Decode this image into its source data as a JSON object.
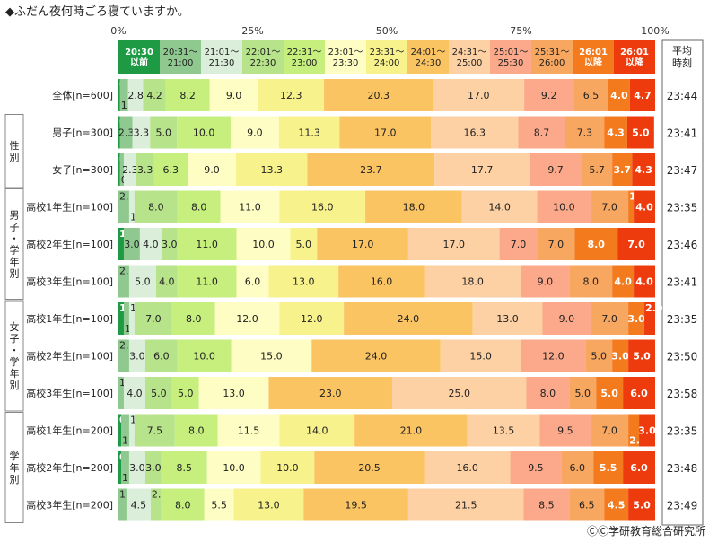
{
  "chart_data": {
    "type": "bar",
    "orientation": "horizontal",
    "stacked": true,
    "title": "◆ふだん夜何時ごろ寝ていますか。",
    "xlim": [
      0,
      100
    ],
    "x_ticks": [
      "0%",
      "25%",
      "50%",
      "75%",
      "100%"
    ],
    "legend": [
      {
        "label": "20:30\n以前",
        "color": "#1e9a45",
        "text_color": "#ffffff"
      },
      {
        "label": "20:31～\n21:00",
        "color": "#8fc98f",
        "text_color": "#222222"
      },
      {
        "label": "21:01～\n21:30",
        "color": "#dbeeda",
        "text_color": "#222222"
      },
      {
        "label": "22:01～\n22:30",
        "color": "#b7e38a",
        "text_color": "#222222"
      },
      {
        "label": "22:31～\n23:00",
        "color": "#c6ef7e",
        "text_color": "#222222"
      },
      {
        "label": "23:01～\n23:30",
        "color": "#fdfdc4",
        "text_color": "#222222"
      },
      {
        "label": "23:31～\n24:00",
        "color": "#f7f28c",
        "text_color": "#222222"
      },
      {
        "label": "24:01～\n24:30",
        "color": "#fbc462",
        "text_color": "#222222"
      },
      {
        "label": "24:31～\n25:00",
        "color": "#fdd1a4",
        "text_color": "#222222"
      },
      {
        "label": "25:01～\n25:30",
        "color": "#fba98a",
        "text_color": "#222222"
      },
      {
        "label": "25:31～\n26:00",
        "color": "#f7a760",
        "text_color": "#222222"
      },
      {
        "label": "26:01\n以降",
        "color": "#f47a1e",
        "text_color": "#ffffff"
      },
      {
        "label": "26:01\n以降",
        "color": "#ee3b0e",
        "text_color": "#ffffff"
      }
    ],
    "avg_header": "平均\n時刻",
    "groups": [
      {
        "label": "",
        "rows": [
          0
        ]
      },
      {
        "label": "性別",
        "rows": [
          1,
          2
        ]
      },
      {
        "label": "男子・学年別",
        "rows": [
          3,
          4,
          5
        ]
      },
      {
        "label": "女子・学年別",
        "rows": [
          6,
          7,
          8
        ]
      },
      {
        "label": "学年別",
        "rows": [
          9,
          10,
          11
        ]
      }
    ],
    "rows": [
      {
        "label": "全体[n=600]",
        "avg": "23:44",
        "values": [
          0.3,
          1.5,
          2.8,
          4.2,
          8.2,
          9.0,
          12.3,
          20.3,
          17.0,
          9.2,
          6.5,
          4.0,
          4.7
        ]
      },
      {
        "label": "男子[n=300]",
        "avg": "23:41",
        "values": [
          0.3,
          2.3,
          3.3,
          5.0,
          10.0,
          9.0,
          11.3,
          17.0,
          16.3,
          8.7,
          7.3,
          4.3,
          5.0
        ]
      },
      {
        "label": "女子[n=300]",
        "avg": "23:47",
        "values": [
          0.3,
          0.7,
          2.3,
          3.3,
          6.3,
          9.0,
          13.3,
          23.7,
          17.7,
          9.7,
          5.7,
          3.7,
          4.3
        ]
      },
      {
        "label": "高校1年生[n=100]",
        "avg": "23:35",
        "values": [
          2.0,
          1.0,
          8.0,
          8.0,
          11.0,
          16.0,
          18.0,
          14.0,
          10.0,
          7.0,
          1.0,
          4.0,
          0
        ]
      },
      {
        "label": "高校2年生[n=100]",
        "avg": "23:46",
        "values": [
          1.0,
          3.0,
          4.0,
          3.0,
          11.0,
          10.0,
          5.0,
          17.0,
          17.0,
          7.0,
          7.0,
          8.0,
          7.0
        ]
      },
      {
        "label": "高校3年生[n=100]",
        "avg": "23:41",
        "values": [
          2.0,
          5.0,
          4.0,
          11.0,
          6.0,
          13.0,
          16.0,
          18.0,
          9.0,
          8.0,
          4.0,
          4.0,
          0
        ]
      },
      {
        "label": "高校1年生[n=100]",
        "avg": "23:35",
        "values": [
          1.0,
          1.0,
          1.0,
          7.0,
          8.0,
          12.0,
          12.0,
          24.0,
          13.0,
          9.0,
          7.0,
          3.0,
          2.0
        ]
      },
      {
        "label": "高校2年生[n=100]",
        "avg": "23:50",
        "values": [
          2.0,
          3.0,
          6.0,
          10.0,
          15.0,
          24.0,
          15.0,
          12.0,
          5.0,
          3.0,
          5.0,
          0,
          0
        ]
      },
      {
        "label": "高校3年生[n=100]",
        "avg": "23:58",
        "values": [
          1.0,
          4.0,
          5.0,
          5.0,
          13.0,
          23.0,
          25.0,
          8.0,
          5.0,
          5.0,
          6.0,
          0,
          0
        ]
      },
      {
        "label": "高校1年生[n=200]",
        "avg": "23:35",
        "values": [
          0.5,
          1.5,
          1.0,
          7.5,
          8.0,
          11.5,
          14.0,
          21.0,
          13.5,
          9.5,
          7.0,
          2.0,
          3.0
        ]
      },
      {
        "label": "高校2年生[n=200]",
        "avg": "23:48",
        "values": [
          0.5,
          1.5,
          3.0,
          3.0,
          8.5,
          10.0,
          10.0,
          20.5,
          16.0,
          9.5,
          6.0,
          5.5,
          6.0
        ]
      },
      {
        "label": "高校3年生[n=200]",
        "avg": "23:49",
        "values": [
          1.5,
          4.5,
          2.0,
          8.0,
          5.5,
          13.0,
          19.5,
          21.5,
          8.5,
          6.5,
          4.5,
          5.0,
          0
        ]
      }
    ],
    "row_color_maps": [
      [
        0,
        1,
        2,
        3,
        4,
        5,
        6,
        7,
        8,
        9,
        10,
        11,
        12
      ],
      [
        0,
        1,
        2,
        3,
        4,
        5,
        6,
        7,
        8,
        9,
        10,
        11,
        12
      ],
      [
        0,
        1,
        2,
        3,
        4,
        5,
        6,
        7,
        8,
        9,
        10,
        11,
        12
      ],
      [
        1,
        2,
        3,
        4,
        5,
        6,
        7,
        8,
        9,
        10,
        11,
        12,
        12
      ],
      [
        0,
        1,
        2,
        3,
        4,
        5,
        6,
        7,
        8,
        9,
        10,
        11,
        12
      ],
      [
        1,
        2,
        3,
        4,
        5,
        6,
        7,
        8,
        9,
        10,
        11,
        12,
        12
      ],
      [
        0,
        1,
        2,
        3,
        4,
        5,
        6,
        7,
        8,
        9,
        10,
        11,
        12
      ],
      [
        1,
        2,
        3,
        4,
        5,
        7,
        8,
        9,
        10,
        11,
        12,
        12,
        12
      ],
      [
        1,
        2,
        3,
        4,
        5,
        7,
        8,
        9,
        10,
        11,
        12,
        12,
        12
      ],
      [
        0,
        1,
        2,
        3,
        4,
        5,
        6,
        7,
        8,
        9,
        10,
        11,
        12
      ],
      [
        0,
        1,
        2,
        3,
        4,
        5,
        6,
        7,
        8,
        9,
        10,
        11,
        12
      ],
      [
        1,
        2,
        3,
        4,
        5,
        6,
        7,
        8,
        9,
        10,
        11,
        12,
        12
      ]
    ],
    "copyright": "ⒸⒸ学研教育総合研究所"
  }
}
